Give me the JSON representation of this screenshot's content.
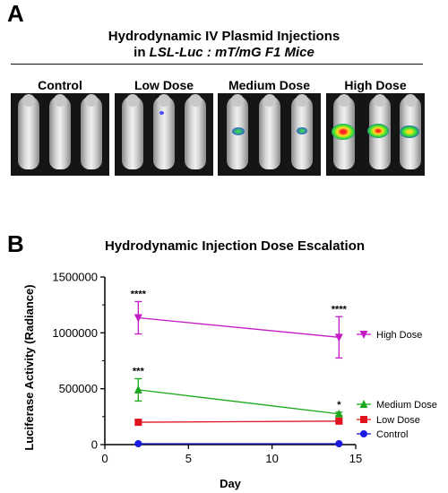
{
  "panel_a": {
    "letter": "A",
    "title_line1": "Hydrodynamic IV Plasmid Injections",
    "title_line2_prefix": "in ",
    "title_line2_italic": "LSL-Luc : mT/mG F1 Mice",
    "groups": [
      "Control",
      "Low Dose",
      "Medium Dose",
      "High Dose"
    ]
  },
  "chart_data": {
    "letter": "B",
    "type": "line",
    "title": "Hydrodynamic Injection Dose Escalation",
    "xlabel": "Day",
    "ylabel": "Luciferase Activity (Radiance)",
    "xlim": [
      0,
      15
    ],
    "ylim": [
      0,
      1500000
    ],
    "xticks": [
      0,
      5,
      10,
      15
    ],
    "yticks": [
      0,
      500000,
      1000000,
      1500000
    ],
    "ytick_labels": [
      "0",
      "500000",
      "1000000",
      "1500000"
    ],
    "xtick_labels": [
      "0",
      "5",
      "10",
      "15"
    ],
    "grid": false,
    "legend_position": "right",
    "x": [
      2,
      14
    ],
    "series": [
      {
        "name": "High Dose",
        "values": [
          1135000,
          960000
        ],
        "err": [
          145000,
          185000
        ],
        "marker": "triangle-down",
        "color": "#c51bc5",
        "annotations": [
          "****",
          "****"
        ]
      },
      {
        "name": "Medium Dose",
        "values": [
          490000,
          275000
        ],
        "err": [
          100000,
          15000
        ],
        "marker": "triangle-up",
        "color": "#1aa81a",
        "annotations": [
          "***",
          "*"
        ]
      },
      {
        "name": "Low Dose",
        "values": [
          200000,
          210000
        ],
        "err": [
          20000,
          15000
        ],
        "marker": "square",
        "color": "#e0141e",
        "annotations": [
          "",
          ""
        ]
      },
      {
        "name": "Control",
        "values": [
          8000,
          8000
        ],
        "err": [
          3000,
          3000
        ],
        "marker": "circle",
        "color": "#1a1ae0",
        "annotations": [
          "",
          ""
        ]
      }
    ]
  }
}
